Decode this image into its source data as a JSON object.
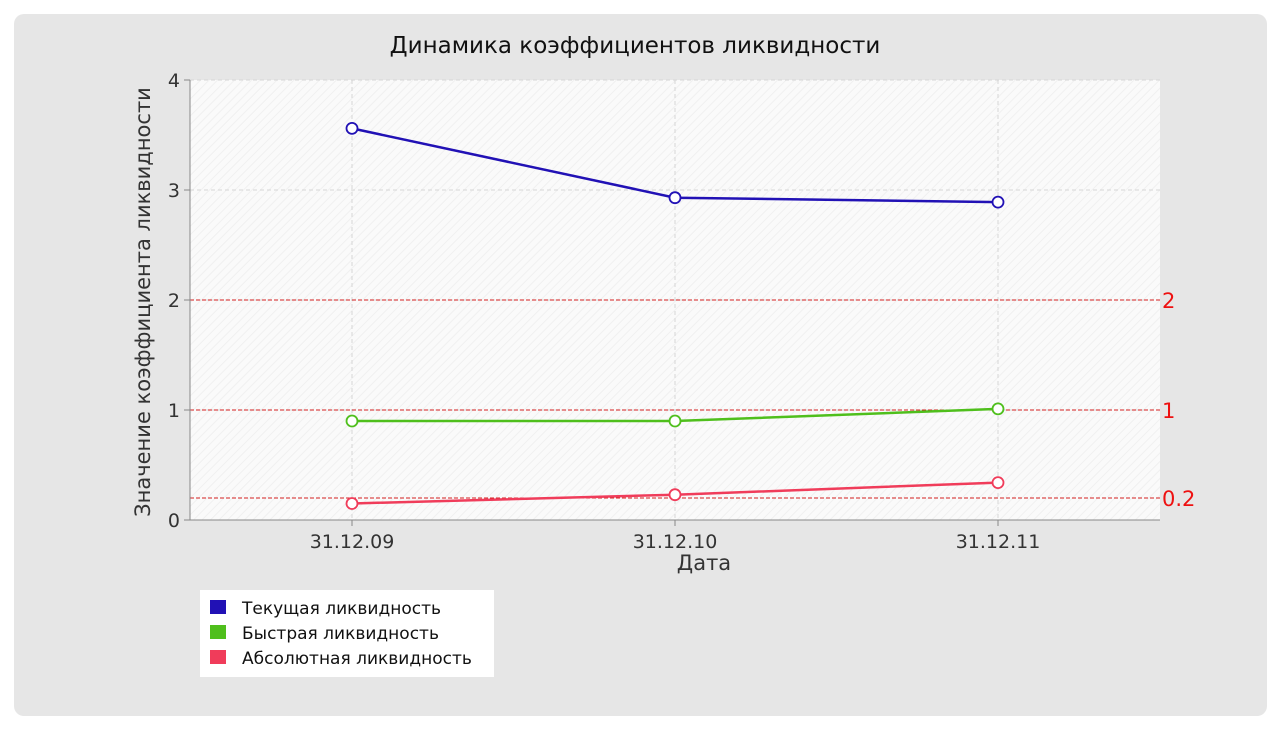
{
  "chart_data": {
    "type": "line",
    "title": "Динамика коэффициентов ликвидности",
    "xlabel": "Дата",
    "ylabel": "Значение коэффициента ликвидности",
    "categories": [
      "31.12.09",
      "31.12.10",
      "31.12.11"
    ],
    "ylim": [
      0,
      4
    ],
    "yticks": [
      "0",
      "1",
      "2",
      "3",
      "4"
    ],
    "grid": true,
    "legend_position": "bottom-left",
    "series": [
      {
        "name": "Текущая ликвидность",
        "values": [
          3.56,
          2.93,
          2.89
        ],
        "color": "#2111b5"
      },
      {
        "name": "Быстрая ликвидность",
        "values": [
          0.9,
          0.9,
          1.01
        ],
        "color": "#4fbf1c"
      },
      {
        "name": "Абсолютная ликвидность",
        "values": [
          0.15,
          0.23,
          0.34
        ],
        "color": "#f03c5a"
      }
    ],
    "reference_lines": [
      {
        "value": 2,
        "label": "2",
        "color": "#d42020"
      },
      {
        "value": 1,
        "label": "1",
        "color": "#d42020"
      },
      {
        "value": 0.2,
        "label": "0.2",
        "color": "#d42020"
      }
    ]
  }
}
